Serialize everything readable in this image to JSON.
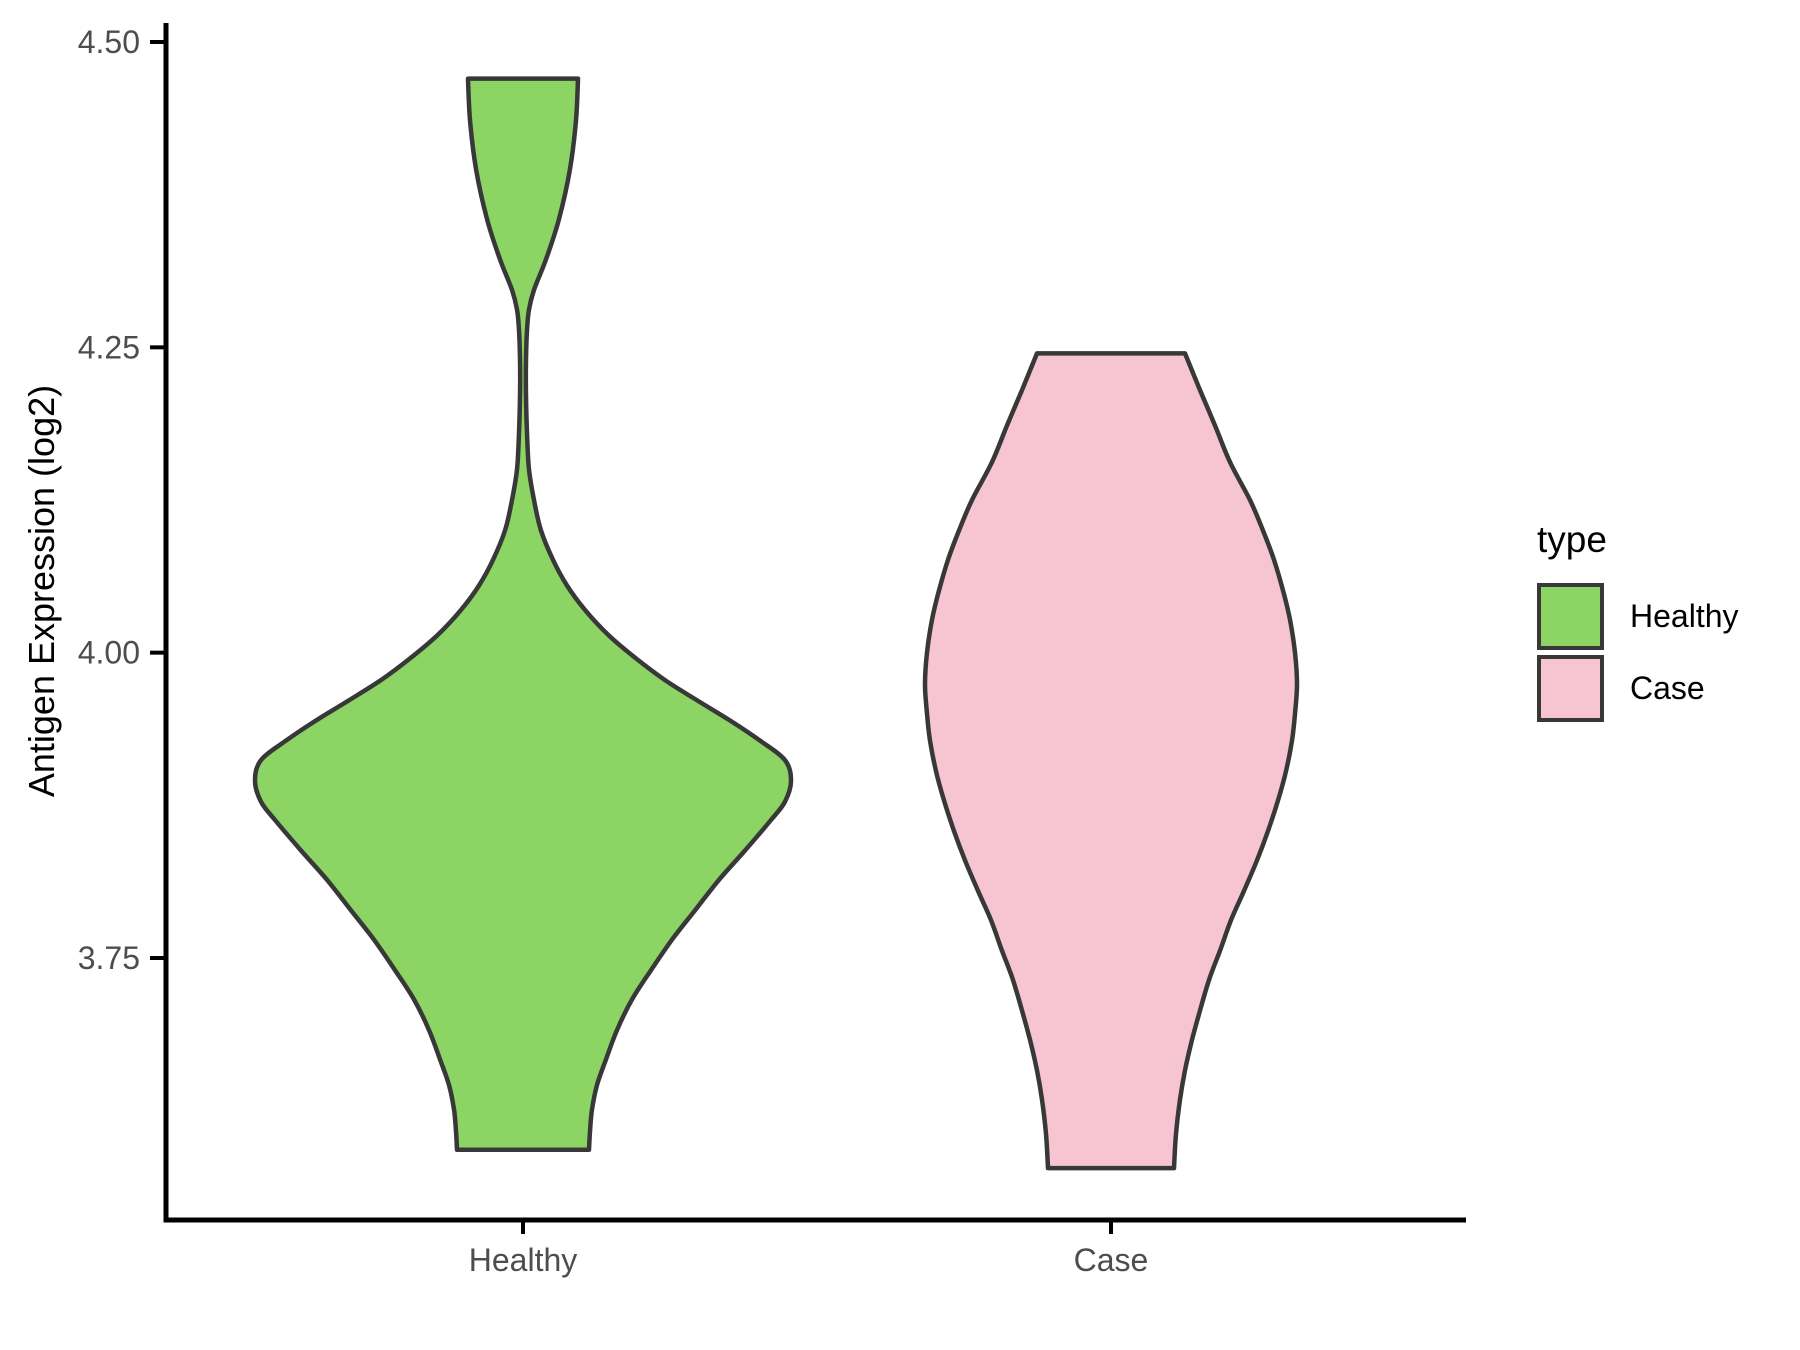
{
  "chart_data": {
    "type": "violin",
    "title": "",
    "xlabel": "",
    "ylabel": "Antigen Expression (log2)",
    "categories": [
      "Healthy",
      "Case"
    ],
    "y_ticks": [
      {
        "value": 3.75,
        "label": "3.75"
      },
      {
        "value": 4.0,
        "label": "4.00"
      },
      {
        "value": 4.25,
        "label": "4.25"
      },
      {
        "value": 4.5,
        "label": "4.50"
      }
    ],
    "ylim": [
      3.54,
      4.52
    ],
    "grid": "off",
    "legend": {
      "title": "type",
      "position": "right",
      "entries": [
        {
          "label": "Healthy",
          "color": "#8CD464"
        },
        {
          "label": "Case",
          "color": "#F7C5D1"
        }
      ]
    },
    "colors": {
      "outline": "#383838",
      "axis_line": "#000000",
      "tick_text": "#4D4D4D",
      "title_text": "#000000",
      "background": "#FFFFFF"
    },
    "series": [
      {
        "name": "Healthy",
        "fill": "#8CD464",
        "data_min": 3.593,
        "data_max": 4.47,
        "peak_value": 3.9,
        "profile_note": "pairs of [expression_value, kde_halfwidth_px]",
        "profile": [
          [
            4.47,
            55
          ],
          [
            4.436,
            53
          ],
          [
            4.396,
            47
          ],
          [
            4.355,
            36
          ],
          [
            4.322,
            23
          ],
          [
            4.297,
            11
          ],
          [
            4.281,
            6
          ],
          [
            4.264,
            4
          ],
          [
            4.24,
            3
          ],
          [
            4.21,
            3
          ],
          [
            4.18,
            4
          ],
          [
            4.15,
            6
          ],
          [
            4.125,
            11
          ],
          [
            4.1,
            18
          ],
          [
            4.076,
            30
          ],
          [
            4.055,
            44
          ],
          [
            4.035,
            62
          ],
          [
            4.014,
            86
          ],
          [
            3.994,
            115
          ],
          [
            3.977,
            143
          ],
          [
            3.96,
            176
          ],
          [
            3.944,
            208
          ],
          [
            3.928,
            237
          ],
          [
            3.912,
            262
          ],
          [
            3.895,
            268
          ],
          [
            3.878,
            262
          ],
          [
            3.863,
            248
          ],
          [
            3.838,
            222
          ],
          [
            3.814,
            196
          ],
          [
            3.789,
            172
          ],
          [
            3.765,
            149
          ],
          [
            3.74,
            128
          ],
          [
            3.716,
            109
          ],
          [
            3.691,
            94
          ],
          [
            3.667,
            83
          ],
          [
            3.646,
            74
          ],
          [
            3.626,
            69
          ],
          [
            3.608,
            67
          ],
          [
            3.593,
            66
          ]
        ]
      },
      {
        "name": "Case",
        "fill": "#F7C5D1",
        "data_min": 3.578,
        "data_max": 4.245,
        "peak_value": 3.97,
        "profile_note": "pairs of [expression_value, kde_halfwidth_px]",
        "profile": [
          [
            4.245,
            74
          ],
          [
            4.215,
            89
          ],
          [
            4.186,
            104
          ],
          [
            4.156,
            119
          ],
          [
            4.125,
            139
          ],
          [
            4.1,
            152
          ],
          [
            4.076,
            163
          ],
          [
            4.051,
            172
          ],
          [
            4.027,
            179
          ],
          [
            4.0,
            184
          ],
          [
            3.974,
            186
          ],
          [
            3.95,
            184
          ],
          [
            3.928,
            181
          ],
          [
            3.903,
            175
          ],
          [
            3.879,
            167
          ],
          [
            3.854,
            157
          ],
          [
            3.83,
            146
          ],
          [
            3.805,
            133
          ],
          [
            3.781,
            120
          ],
          [
            3.756,
            109
          ],
          [
            3.732,
            98
          ],
          [
            3.707,
            89
          ],
          [
            3.683,
            81
          ],
          [
            3.658,
            74
          ],
          [
            3.634,
            69
          ],
          [
            3.606,
            65
          ],
          [
            3.578,
            63
          ]
        ]
      }
    ]
  }
}
